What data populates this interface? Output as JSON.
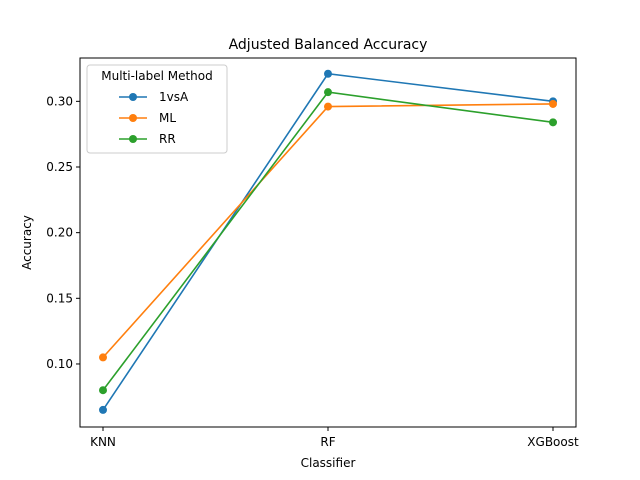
{
  "chart_data": {
    "type": "line",
    "title": "Adjusted Balanced Accuracy",
    "xlabel": "Classifier",
    "ylabel": "Accuracy",
    "categories": [
      "KNN",
      "RF",
      "XGBoost"
    ],
    "ylim": [
      0.052,
      0.333
    ],
    "yticks": [
      0.1,
      0.15,
      0.2,
      0.25,
      0.3
    ],
    "ytick_labels": [
      "0.10",
      "0.15",
      "0.20",
      "0.25",
      "0.30"
    ],
    "grid": false,
    "legend": {
      "title": "Multi-label Method",
      "placement": "top-left"
    },
    "series": [
      {
        "name": "1vsA",
        "color": "#1f77b4",
        "values": [
          0.065,
          0.321,
          0.3
        ]
      },
      {
        "name": "ML",
        "color": "#ff7f0e",
        "values": [
          0.105,
          0.296,
          0.298
        ]
      },
      {
        "name": "RR",
        "color": "#2ca02c",
        "values": [
          0.08,
          0.307,
          0.284
        ]
      }
    ]
  }
}
